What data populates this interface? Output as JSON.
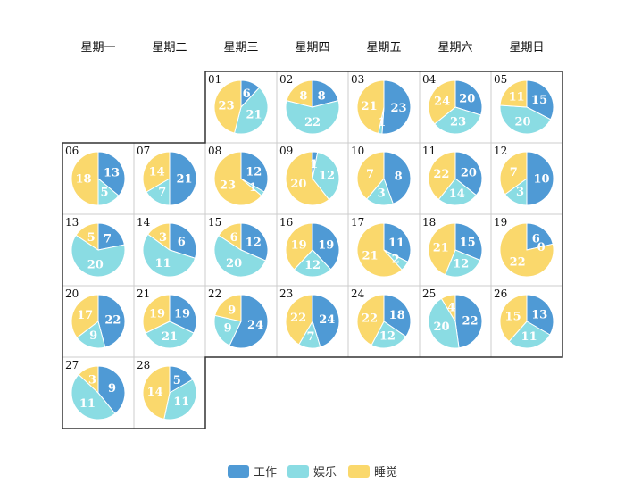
{
  "chart_data": {
    "type": "pie",
    "layout": "calendar",
    "weekdays": [
      "星期一",
      "星期二",
      "星期三",
      "星期四",
      "星期五",
      "星期六",
      "星期日"
    ],
    "series": [
      {
        "name": "工作",
        "color": "#4f9ad5"
      },
      {
        "name": "娱乐",
        "color": "#8adce3"
      },
      {
        "name": "睡觉",
        "color": "#fad86c"
      }
    ],
    "legend_position": "bottom",
    "days": [
      {
        "day": "01",
        "values": [
          6,
          21,
          23
        ]
      },
      {
        "day": "02",
        "values": [
          8,
          22,
          8
        ]
      },
      {
        "day": "03",
        "values": [
          23,
          1,
          21
        ]
      },
      {
        "day": "04",
        "values": [
          20,
          23,
          24
        ]
      },
      {
        "day": "05",
        "values": [
          15,
          20,
          11
        ]
      },
      {
        "day": "06",
        "values": [
          13,
          5,
          18
        ]
      },
      {
        "day": "07",
        "values": [
          21,
          7,
          14
        ]
      },
      {
        "day": "08",
        "values": [
          12,
          1,
          23
        ]
      },
      {
        "day": "09",
        "values": [
          1,
          12,
          20
        ]
      },
      {
        "day": "10",
        "values": [
          8,
          3,
          7
        ]
      },
      {
        "day": "11",
        "values": [
          20,
          14,
          22
        ]
      },
      {
        "day": "12",
        "values": [
          10,
          3,
          7
        ]
      },
      {
        "day": "13",
        "values": [
          7,
          20,
          5
        ]
      },
      {
        "day": "14",
        "values": [
          6,
          11,
          3
        ]
      },
      {
        "day": "15",
        "values": [
          12,
          20,
          6
        ]
      },
      {
        "day": "16",
        "values": [
          19,
          12,
          19
        ]
      },
      {
        "day": "17",
        "values": [
          11,
          2,
          21
        ]
      },
      {
        "day": "18",
        "values": [
          15,
          12,
          21
        ]
      },
      {
        "day": "19",
        "values": [
          6,
          0,
          22
        ]
      },
      {
        "day": "20",
        "values": [
          22,
          9,
          17
        ]
      },
      {
        "day": "21",
        "values": [
          19,
          21,
          19
        ]
      },
      {
        "day": "22",
        "values": [
          24,
          9,
          9
        ]
      },
      {
        "day": "23",
        "values": [
          24,
          7,
          22
        ]
      },
      {
        "day": "24",
        "values": [
          18,
          12,
          22
        ]
      },
      {
        "day": "25",
        "values": [
          22,
          20,
          4
        ]
      },
      {
        "day": "26",
        "values": [
          13,
          11,
          15
        ]
      },
      {
        "day": "27",
        "values": [
          9,
          11,
          3
        ]
      },
      {
        "day": "28",
        "values": [
          5,
          11,
          14
        ]
      }
    ]
  }
}
